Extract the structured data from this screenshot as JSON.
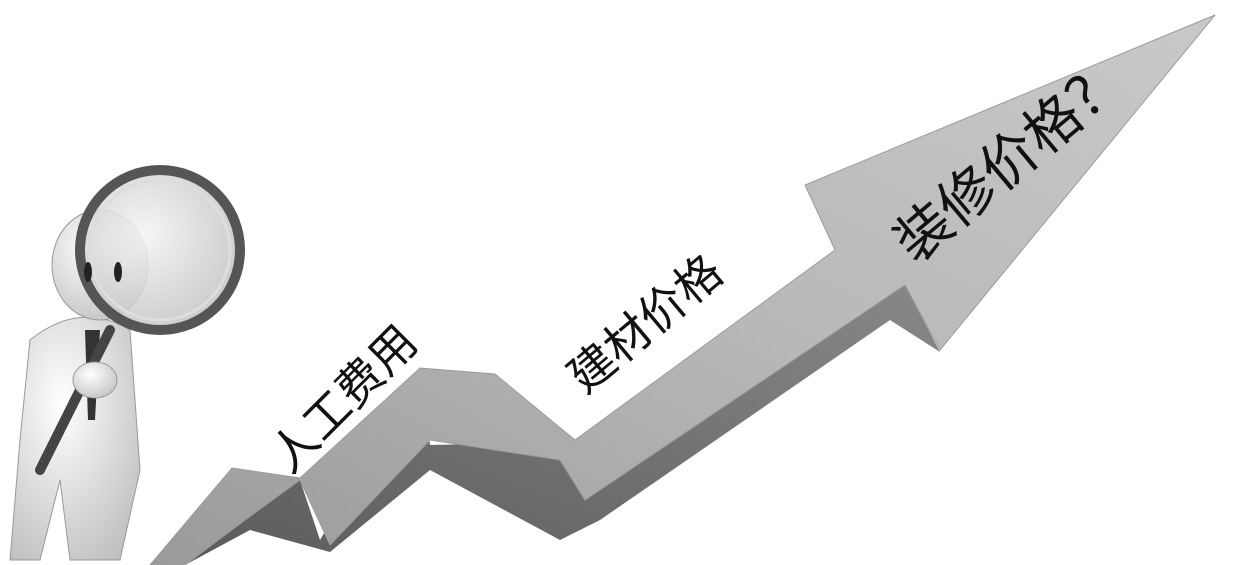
{
  "labels": [
    "人工费用",
    "建材价格",
    "装修价格？"
  ]
}
